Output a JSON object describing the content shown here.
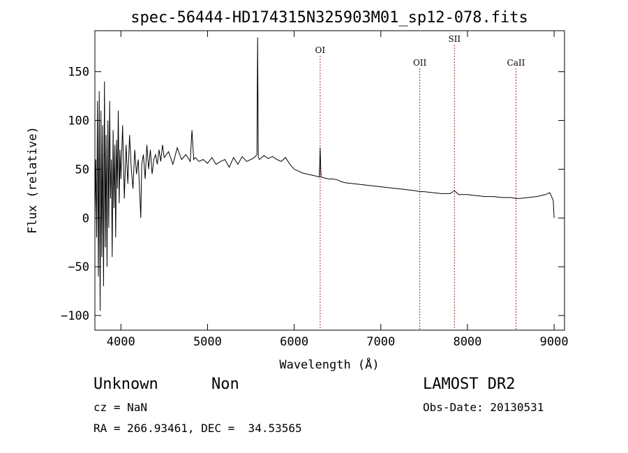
{
  "chart_data": {
    "type": "line",
    "title": "spec-56444-HD174315N325903M01_sp12-078.fits",
    "xlabel": "Wavelength (Å)",
    "ylabel": "Flux (relative)",
    "xlim": [
      3700,
      9120
    ],
    "ylim": [
      -115,
      192
    ],
    "xticks": [
      4000,
      5000,
      6000,
      7000,
      8000,
      9000
    ],
    "yticks": [
      -100,
      -50,
      0,
      50,
      100,
      150
    ],
    "tick_labels": {
      "x": [
        "4000",
        "5000",
        "6000",
        "7000",
        "8000",
        "9000"
      ],
      "y": [
        "−100",
        "−50",
        "0",
        "50",
        "100",
        "150"
      ]
    },
    "grid": false,
    "series": [
      {
        "x": [
          3700,
          3710,
          3720,
          3730,
          3740,
          3750,
          3760,
          3770,
          3780,
          3790,
          3800,
          3810,
          3820,
          3830,
          3840,
          3850,
          3860,
          3870,
          3880,
          3890,
          3900,
          3910,
          3920,
          3930,
          3940,
          3950,
          3960,
          3970,
          3980,
          3990,
          4000,
          4020,
          4040,
          4060,
          4080,
          4100,
          4120,
          4140,
          4160,
          4180,
          4200,
          4220,
          4230,
          4240,
          4260,
          4280,
          4300,
          4320,
          4340,
          4360,
          4380,
          4400,
          4420,
          4440,
          4460,
          4480,
          4500,
          4550,
          4600,
          4650,
          4700,
          4750,
          4800,
          4820,
          4840,
          4860,
          4900,
          4950,
          5000,
          5050,
          5100,
          5150,
          5200,
          5250,
          5300,
          5350,
          5400,
          5450,
          5500,
          5540,
          5570,
          5578,
          5586,
          5600,
          5650,
          5700,
          5750,
          5800,
          5850,
          5900,
          5950,
          6000,
          6050,
          6100,
          6150,
          6200,
          6250,
          6290,
          6300,
          6310,
          6350,
          6400,
          6450,
          6500,
          6550,
          6600,
          6700,
          6800,
          6900,
          7000,
          7100,
          7200,
          7300,
          7400,
          7450,
          7500,
          7600,
          7700,
          7800,
          7850,
          7900,
          8000,
          8100,
          8200,
          8300,
          8400,
          8500,
          8560,
          8600,
          8700,
          8800,
          8900,
          8950,
          8990,
          9000
        ],
        "y": [
          0,
          60,
          -20,
          120,
          -60,
          130,
          -95,
          110,
          -40,
          95,
          -70,
          140,
          -30,
          85,
          -50,
          100,
          -10,
          120,
          20,
          60,
          -40,
          90,
          10,
          75,
          -20,
          80,
          30,
          110,
          15,
          70,
          40,
          95,
          20,
          75,
          35,
          85,
          50,
          30,
          70,
          45,
          60,
          20,
          0,
          55,
          65,
          40,
          75,
          50,
          70,
          45,
          60,
          65,
          55,
          70,
          58,
          75,
          62,
          68,
          55,
          72,
          60,
          65,
          58,
          90,
          60,
          62,
          58,
          60,
          56,
          62,
          55,
          58,
          60,
          52,
          62,
          55,
          63,
          58,
          60,
          62,
          65,
          185,
          62,
          60,
          64,
          61,
          63,
          60,
          58,
          62,
          55,
          50,
          48,
          46,
          45,
          44,
          43,
          42,
          72,
          42,
          41,
          40,
          40,
          39,
          37,
          36,
          35,
          34,
          33,
          32,
          31,
          30,
          29,
          28,
          27,
          27,
          26,
          25,
          25,
          28,
          24,
          24,
          23,
          22,
          22,
          21,
          21,
          20,
          20,
          21,
          22,
          24,
          26,
          18,
          0
        ]
      }
    ],
    "lines": [
      {
        "label": "OI",
        "x": 6300
      },
      {
        "label": "OII",
        "x": 7450
      },
      {
        "label": "SII",
        "x": 7850
      },
      {
        "label": "CaII",
        "x": 8560
      }
    ],
    "line_color": "#b22222"
  },
  "info": {
    "class": "Unknown",
    "subclass": "Non",
    "cz": "cz = NaN",
    "coords": "RA = 266.93461, DEC =  34.53565",
    "survey": "LAMOST DR2",
    "obs_date": "Obs-Date: 20130531"
  }
}
